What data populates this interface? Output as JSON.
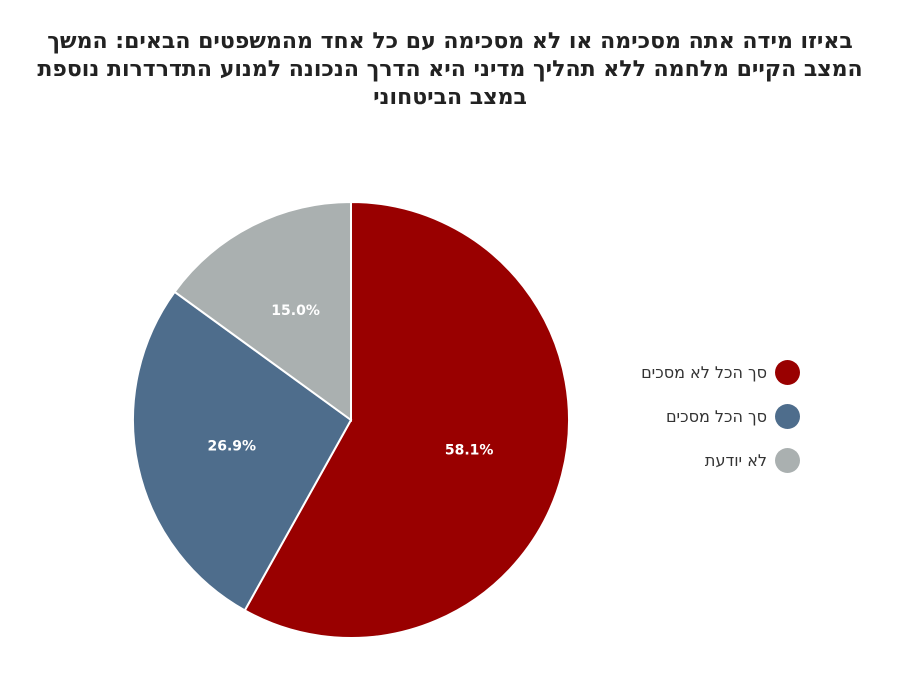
{
  "chart_data": {
    "type": "pie",
    "title": "באיזו מידה אתה מסכימה או לא מסכימה עם כל אחד מהמשפטים הבאים: המשך המצב הקיים  מלחמה ללא תהליך מדיני  היא הדרך הנכונה למנוע התדרדרות נוספת במצב הביטחוני",
    "slices": [
      {
        "label": "סך הכל לא מסכים",
        "value": 58.1,
        "display": "58.1%",
        "color": "#990000"
      },
      {
        "label": "סך הכל מסכים",
        "value": 26.9,
        "display": "26.9%",
        "color": "#4e6d8c"
      },
      {
        "label": "לא יודעת",
        "value": 15.0,
        "display": "15.0%",
        "color": "#aab0b0"
      }
    ],
    "start_angle": "12 o'clock",
    "direction": "clockwise",
    "legend_position": "right"
  }
}
